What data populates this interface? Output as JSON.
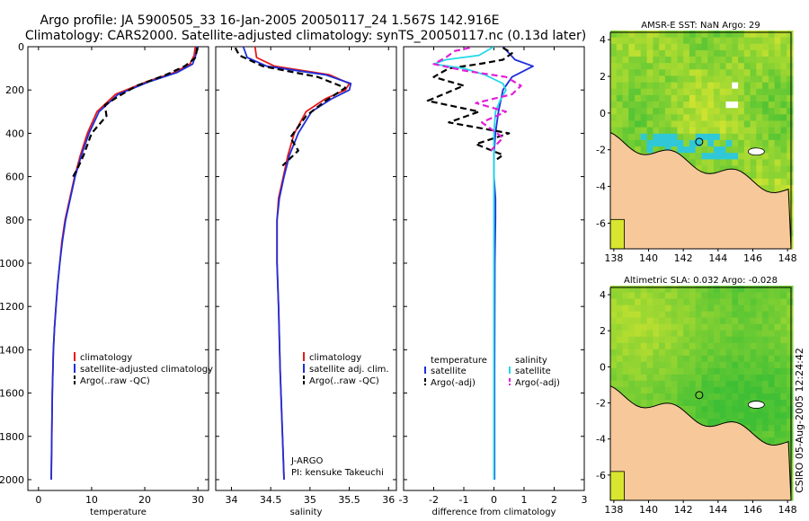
{
  "title": {
    "line1": "Argo profile: JA 5900505_33 16-Jan-2005 20050117_24 1.567S 142.916E",
    "line2": "Climatology: CARS2000. Satellite-adjusted climatology: synTS_20050117.nc (0.13d later)"
  },
  "side_stamp": "CSIRO 05-Aug-2005 12:24:42",
  "colors": {
    "climatology": "#e41a1c",
    "satellite": "#1f2fd8",
    "argo": "#000000",
    "satellite_salinity": "#22d8e8",
    "argo_salinity": "#e020d8",
    "land": "#f6c89a",
    "ocean_green": "#3fbf35",
    "ocean_yellow": "#d8e630",
    "ocean_cyan": "#30c8d8"
  },
  "chart_data": [
    {
      "id": "temperature",
      "type": "line",
      "xlabel": "temperature",
      "ylabel": "",
      "xlim": [
        -2,
        32
      ],
      "ylim": [
        2050,
        0
      ],
      "y_inverted": true,
      "xticks": [
        0,
        10,
        20,
        30
      ],
      "yticks": [
        0,
        200,
        400,
        600,
        800,
        1000,
        1200,
        1400,
        1600,
        1800,
        2000
      ],
      "legend": {
        "position": "bottom-right",
        "entries": [
          "climatology",
          "satellite-adjusted climatology",
          "Argo(..raw -QC)"
        ]
      },
      "series": [
        {
          "name": "climatology",
          "style": "solid",
          "color_key": "climatology",
          "x": [
            29.5,
            29.3,
            28.5,
            25.5,
            20.5,
            14.5,
            11.0,
            9.2,
            7.9,
            6.8,
            5.9,
            5.0,
            4.4,
            4.0,
            3.6,
            3.3,
            3.0,
            2.8,
            2.6,
            2.5,
            2.4
          ],
          "y": [
            0,
            40,
            80,
            120,
            160,
            220,
            300,
            400,
            500,
            600,
            700,
            800,
            900,
            1000,
            1100,
            1200,
            1300,
            1400,
            1600,
            1800,
            2000
          ]
        },
        {
          "name": "satellite-adjusted climatology",
          "style": "solid",
          "color_key": "satellite",
          "x": [
            29.8,
            29.6,
            29.0,
            26.0,
            21.0,
            15.0,
            11.4,
            9.5,
            8.1,
            6.9,
            6.0,
            5.1,
            4.5,
            4.0,
            3.6,
            3.3,
            3.0,
            2.8,
            2.6,
            2.5,
            2.4
          ],
          "y": [
            0,
            40,
            80,
            120,
            160,
            220,
            300,
            400,
            500,
            600,
            700,
            800,
            900,
            1000,
            1100,
            1200,
            1300,
            1400,
            1600,
            1800,
            2000
          ]
        },
        {
          "name": "Argo(..raw -QC)",
          "style": "dashed",
          "color_key": "argo",
          "x": [
            29.9,
            29.7,
            29.6,
            27.5,
            24.0,
            18.5,
            15.0,
            12.5,
            12.8,
            10.0,
            8.5,
            7.4,
            6.5
          ],
          "y": [
            5,
            30,
            50,
            90,
            130,
            180,
            230,
            270,
            320,
            400,
            500,
            560,
            600
          ]
        }
      ]
    },
    {
      "id": "salinity",
      "type": "line",
      "xlabel": "salinity",
      "ylabel": "",
      "xlim": [
        33.8,
        36.1
      ],
      "ylim": [
        2050,
        0
      ],
      "y_inverted": true,
      "xticks": [
        34,
        34.5,
        35,
        35.5,
        36
      ],
      "yticks": [
        0,
        200,
        400,
        600,
        800,
        1000,
        1200,
        1400,
        1600,
        1800,
        2000
      ],
      "legend": {
        "position": "bottom-right",
        "entries": [
          "climatology",
          "satellite adj. clim.",
          "Argo(..raw -QC)"
        ]
      },
      "annotations": [
        "J-ARGO",
        "PI: kensuke Takeuchi"
      ],
      "series": [
        {
          "name": "climatology",
          "style": "solid",
          "color_key": "climatology",
          "x": [
            34.3,
            34.32,
            34.55,
            35.25,
            35.5,
            35.45,
            35.2,
            34.95,
            34.8,
            34.72,
            34.66,
            34.6,
            34.58,
            34.58,
            34.6,
            34.62,
            34.65,
            34.67
          ],
          "y": [
            0,
            50,
            90,
            130,
            170,
            200,
            240,
            300,
            400,
            500,
            600,
            700,
            800,
            1000,
            1200,
            1500,
            1800,
            2000
          ]
        },
        {
          "name": "satellite adj. clim.",
          "style": "solid",
          "color_key": "satellite",
          "x": [
            34.15,
            34.2,
            34.45,
            35.2,
            35.52,
            35.5,
            35.28,
            35.02,
            34.85,
            34.74,
            34.67,
            34.61,
            34.58,
            34.58,
            34.6,
            34.62,
            34.65,
            34.67
          ],
          "y": [
            0,
            50,
            90,
            130,
            170,
            200,
            240,
            300,
            400,
            500,
            600,
            700,
            800,
            1000,
            1200,
            1500,
            1800,
            2000
          ]
        },
        {
          "name": "Argo(..raw -QC)",
          "style": "dashed",
          "color_key": "argo",
          "x": [
            34.05,
            34.1,
            34.4,
            35.1,
            35.45,
            35.2,
            34.95,
            34.75,
            34.85,
            34.65
          ],
          "y": [
            5,
            40,
            90,
            140,
            190,
            250,
            320,
            420,
            480,
            550
          ]
        }
      ]
    },
    {
      "id": "difference",
      "type": "line",
      "xlabel": "difference from climatology",
      "ylabel": "",
      "xlim": [
        -3,
        3
      ],
      "ylim": [
        2050,
        0
      ],
      "y_inverted": true,
      "xticks": [
        -3,
        -2,
        -1,
        0,
        1,
        2,
        3
      ],
      "yticks": [
        0,
        200,
        400,
        600,
        800,
        1000,
        1200,
        1400,
        1600,
        1800,
        2000
      ],
      "legend": {
        "position": "bottom",
        "left_title": "temperature",
        "left_entries": [
          "satellite",
          "Argo(-adj)"
        ],
        "right_title": "salinity",
        "right_entries": [
          "satellite",
          "Argo(-adj)"
        ]
      },
      "series": [
        {
          "name": "temperature satellite",
          "style": "solid",
          "color_key": "satellite",
          "x": [
            0.3,
            0.5,
            0.7,
            1.3,
            0.6,
            0.3,
            0.15,
            0.05,
            0,
            0,
            0.05,
            0.05,
            0.03,
            0.02,
            0.02
          ],
          "y": [
            0,
            30,
            60,
            90,
            140,
            200,
            300,
            400,
            500,
            600,
            700,
            800,
            1000,
            1500,
            2000
          ]
        },
        {
          "name": "temperature Argo(-adj)",
          "style": "dashed",
          "color_key": "argo",
          "x": [
            0.3,
            0.6,
            0.3,
            -0.5,
            -1.5,
            -2.0,
            -1.0,
            -2.2,
            -0.5,
            -1.5,
            0.5,
            -0.6,
            0.3,
            0.1
          ],
          "y": [
            5,
            30,
            60,
            80,
            100,
            140,
            180,
            250,
            300,
            350,
            400,
            450,
            500,
            520
          ]
        },
        {
          "name": "salinity satellite",
          "style": "solid",
          "color_key": "satellite_salinity",
          "x": [
            0,
            -0.5,
            -1.6,
            -2.0,
            -1.0,
            -0.3,
            0.3,
            0.4,
            0.2,
            0.05,
            0,
            0,
            0,
            0
          ],
          "y": [
            0,
            40,
            60,
            80,
            100,
            130,
            170,
            200,
            250,
            300,
            400,
            600,
            1000,
            2000
          ]
        },
        {
          "name": "salinity Argo(-adj)",
          "style": "dashed",
          "color_key": "argo_salinity",
          "x": [
            -0.8,
            -1.3,
            -1.6,
            -2.0,
            -1.0,
            0.4,
            0.9,
            0.6,
            -0.6,
            0.4,
            -0.4,
            0.3,
            -0.1
          ],
          "y": [
            5,
            20,
            50,
            80,
            110,
            140,
            180,
            220,
            260,
            300,
            350,
            420,
            480
          ]
        }
      ]
    },
    {
      "id": "sst_map",
      "type": "heatmap",
      "title": "AMSR-E SST: NaN Argo: 29",
      "xlim": [
        137.8,
        148.2
      ],
      "ylim": [
        -7.4,
        4.4
      ],
      "xticks": [
        138,
        140,
        142,
        144,
        146,
        148
      ],
      "yticks": [
        4,
        2,
        0,
        -2,
        -4,
        -6
      ],
      "argo_position": {
        "lon": 142.916,
        "lat": -1.567
      }
    },
    {
      "id": "sla_map",
      "type": "heatmap",
      "title": "Altimetric SLA: 0.032 Argo: -0.028",
      "xlim": [
        137.8,
        148.2
      ],
      "ylim": [
        -7.4,
        4.4
      ],
      "xticks": [
        138,
        140,
        142,
        144,
        146,
        148
      ],
      "yticks": [
        4,
        2,
        0,
        -2,
        -4,
        -6
      ],
      "argo_position": {
        "lon": 142.916,
        "lat": -1.567
      }
    }
  ]
}
